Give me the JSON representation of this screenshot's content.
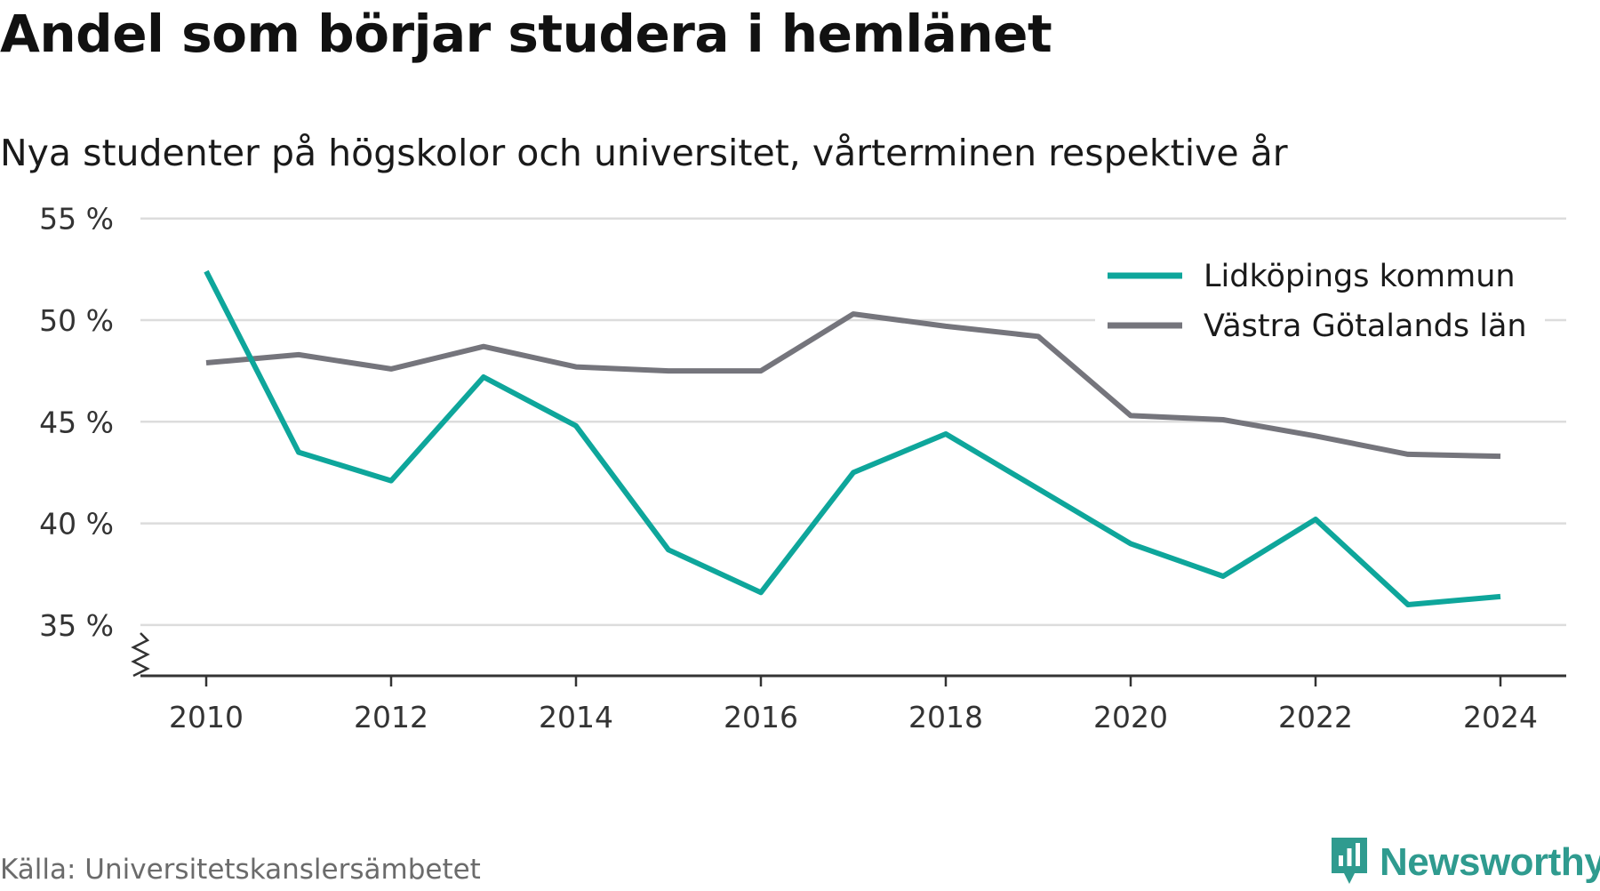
{
  "title": "Andel som börjar studera i hemlänet",
  "subtitle": "Nya studenter på högskolor och universitet, vårterminen respektive år",
  "source": "Källa: Universitetskanslersämbetet",
  "brand": {
    "name": "Newsworthy",
    "icon": "newsworthy-logo-icon",
    "color": "#2f9b8f"
  },
  "chart_data": {
    "type": "line",
    "x": [
      2010,
      2011,
      2012,
      2013,
      2014,
      2015,
      2016,
      2017,
      2018,
      2019,
      2020,
      2021,
      2022,
      2023,
      2024
    ],
    "xticks": [
      2010,
      2012,
      2014,
      2016,
      2018,
      2020,
      2022,
      2024
    ],
    "xtick_labels": [
      "2010",
      "2012",
      "2014",
      "2016",
      "2018",
      "2020",
      "2022",
      "2024"
    ],
    "yticks": [
      35,
      40,
      45,
      50,
      55
    ],
    "ytick_labels": [
      "35 %",
      "40 %",
      "45 %",
      "50 %",
      "55 %"
    ],
    "ylim": [
      32.5,
      57
    ],
    "axis_break": true,
    "grid": true,
    "legend_position": "top-right",
    "series": [
      {
        "name": "Lidköpings kommun",
        "color": "#0ea69b",
        "values": [
          52.4,
          43.5,
          42.1,
          47.2,
          44.8,
          38.7,
          36.6,
          42.5,
          44.4,
          41.7,
          39.0,
          37.4,
          40.2,
          36.0,
          36.4
        ]
      },
      {
        "name": "Västra Götalands län",
        "color": "#75757c",
        "values": [
          47.9,
          48.3,
          47.6,
          48.7,
          47.7,
          47.5,
          47.5,
          50.3,
          49.7,
          49.2,
          45.3,
          45.1,
          44.3,
          43.4,
          43.3
        ]
      }
    ]
  }
}
